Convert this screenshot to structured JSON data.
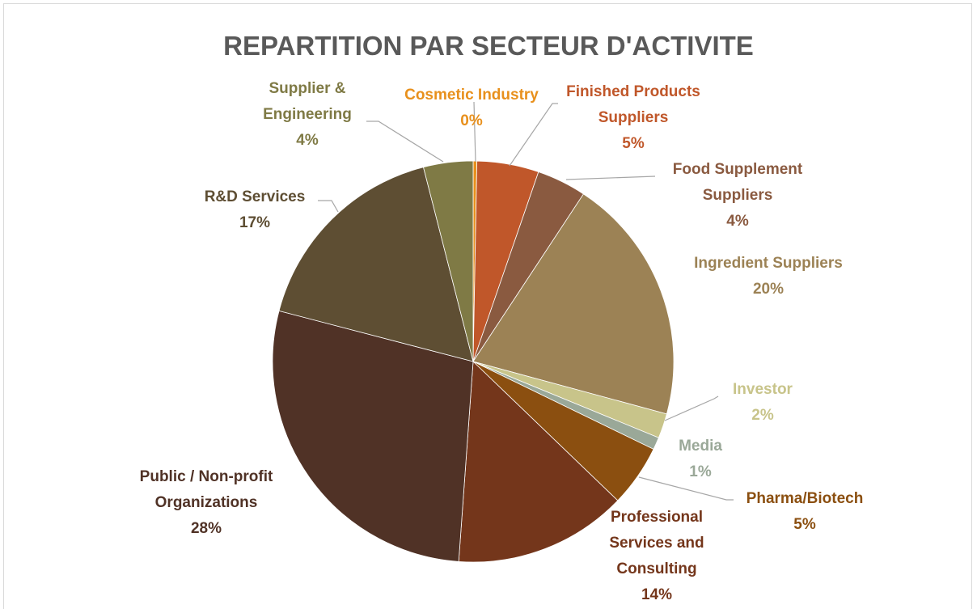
{
  "chart_data": {
    "type": "pie",
    "title": "REPARTITION PAR SECTEUR D'ACTIVITE",
    "categories": [
      "Cosmetic Industry",
      "Finished Products Suppliers",
      "Food Supplement Suppliers",
      "Ingredient Suppliers",
      "Investor",
      "Media",
      "Pharma/Biotech",
      "Professional Services and Consulting",
      "Public / Non-profit Organizations",
      "R&D Services",
      "Supplier & Engineering"
    ],
    "values": [
      0.3,
      5,
      4,
      20,
      2,
      1,
      5,
      14,
      28,
      17,
      4
    ],
    "value_labels": [
      "0%",
      "5%",
      "4%",
      "20%",
      "2%",
      "1%",
      "5%",
      "14%",
      "28%",
      "17%",
      "4%"
    ],
    "colors": [
      "#e8901c",
      "#c0572a",
      "#8a5a40",
      "#9c8255",
      "#c8c48a",
      "#9aa898",
      "#8b4f10",
      "#74361b",
      "#503226",
      "#5e4e33",
      "#7f7a45"
    ]
  }
}
